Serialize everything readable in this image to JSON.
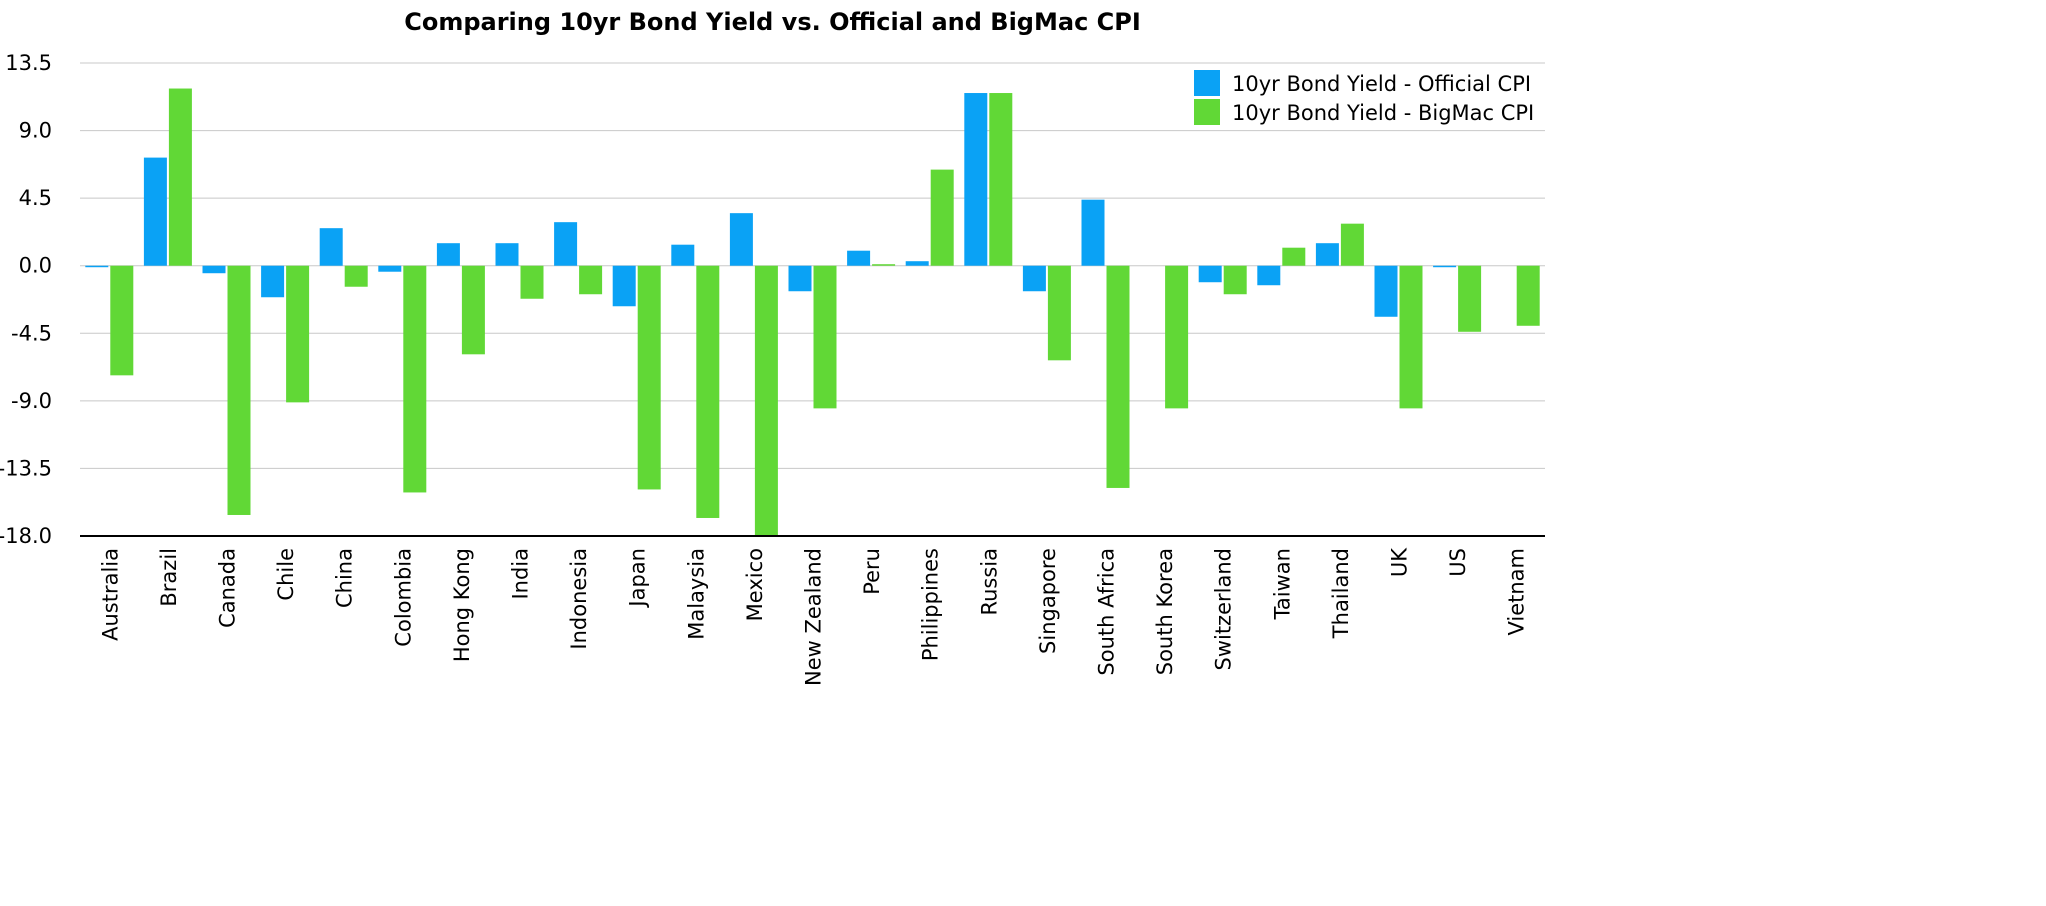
{
  "chart_data": {
    "type": "bar",
    "title": "Comparing 10yr Bond Yield vs. Official and BigMac CPI",
    "xlabel": "",
    "ylabel": "",
    "ylim": [
      -18.0,
      13.5
    ],
    "yticks": [
      "13.5",
      "9.0",
      "4.5",
      "0.0",
      "-4.5",
      "-9.0",
      "-13.5",
      "-18.0"
    ],
    "grid": "horizontal",
    "legend_position": "top-right",
    "categories": [
      "Australia",
      "Brazil",
      "Canada",
      "Chile",
      "China",
      "Colombia",
      "Hong Kong",
      "India",
      "Indonesia",
      "Japan",
      "Malaysia",
      "Mexico",
      "New Zealand",
      "Peru",
      "Philippines",
      "Russia",
      "Singapore",
      "South Africa",
      "South Korea",
      "Switzerland",
      "Taiwan",
      "Thailand",
      "UK",
      "US",
      "Vietnam"
    ],
    "series": [
      {
        "name": "10yr Bond Yield - Official CPI",
        "color": "#0aa2f5",
        "values": [
          -0.1,
          7.2,
          -0.5,
          -2.1,
          2.5,
          -0.4,
          1.5,
          1.5,
          2.9,
          -2.7,
          1.4,
          3.5,
          -1.7,
          1.0,
          0.3,
          11.5,
          -1.7,
          4.4,
          0.0,
          -1.1,
          -1.3,
          1.5,
          -3.4,
          -0.1,
          0.0
        ]
      },
      {
        "name": "10yr Bond Yield - BigMac CPI",
        "color": "#61d836",
        "values": [
          -7.3,
          11.8,
          -16.6,
          -9.1,
          -1.4,
          -15.1,
          -5.9,
          -2.2,
          -1.9,
          -14.9,
          -16.8,
          -18.0,
          -9.5,
          0.1,
          6.4,
          11.5,
          -6.3,
          -14.8,
          -9.5,
          -1.9,
          1.2,
          2.8,
          -9.5,
          -4.4,
          -4.0
        ]
      }
    ]
  }
}
